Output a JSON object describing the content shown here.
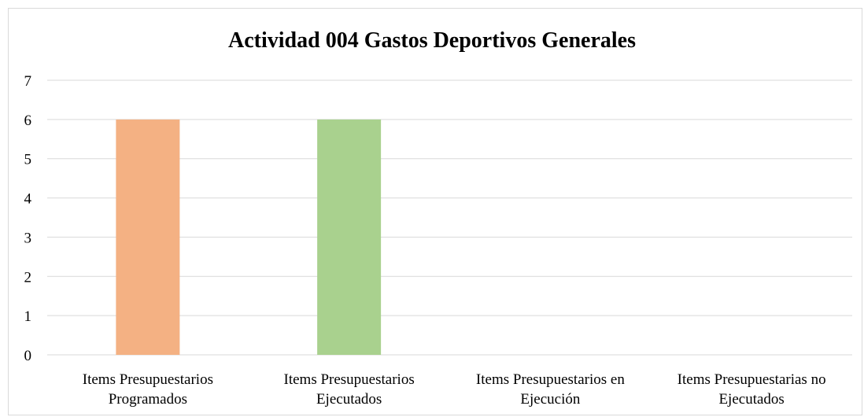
{
  "chart_data": {
    "type": "bar",
    "title": "Actividad 004 Gastos Deportivos Generales",
    "categories": [
      [
        "Items Presupuestarios",
        "Programados"
      ],
      [
        "Items Presupuestarios",
        "Ejecutados"
      ],
      [
        "Items Presupuestarios en",
        "Ejecución"
      ],
      [
        "Items Presupuestarias no",
        "Ejecutados"
      ]
    ],
    "values": [
      6,
      6,
      0,
      0
    ],
    "colors": [
      "#f4b183",
      "#a9d18e",
      "#f4b183",
      "#a9d18e"
    ],
    "ylim": [
      0,
      7
    ],
    "yticks": [
      "0",
      "1",
      "2",
      "3",
      "4",
      "5",
      "6",
      "7"
    ],
    "grid": true,
    "xlabel": "",
    "ylabel": ""
  }
}
